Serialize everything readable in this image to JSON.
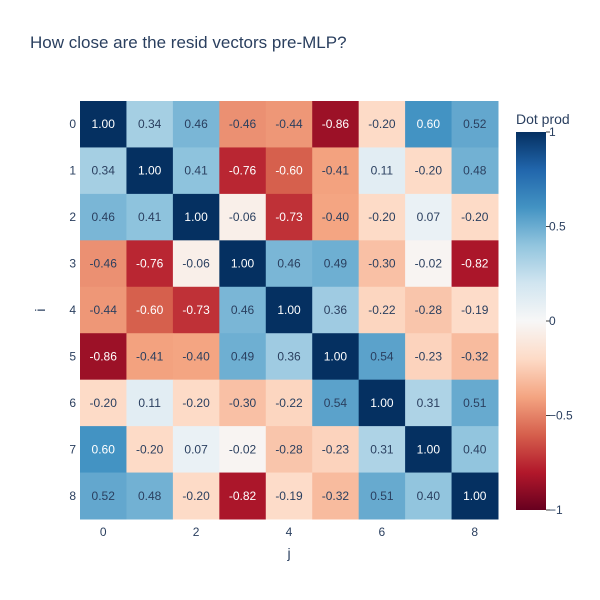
{
  "chart_data": {
    "type": "heatmap",
    "title": "How close are the resid vectors pre-MLP?",
    "xlabel": "j",
    "ylabel": "i",
    "x_tick_labels": [
      "0",
      "2",
      "4",
      "6",
      "8"
    ],
    "y_tick_labels": [
      "0",
      "1",
      "2",
      "3",
      "4",
      "5",
      "6",
      "7",
      "8"
    ],
    "colorbar": {
      "title": "Dot prod",
      "range": [
        -1,
        1
      ],
      "tick_labels": [
        "1",
        "0.5",
        "0",
        "−0.5",
        "−1"
      ],
      "colorscale": [
        "#67001f",
        "#b2182b",
        "#d6604d",
        "#f4a582",
        "#fddbc7",
        "#f7f7f7",
        "#d1e5f0",
        "#92c5de",
        "#4393c3",
        "#2166ac",
        "#053061"
      ]
    },
    "z": [
      [
        1.0,
        0.34,
        0.46,
        -0.46,
        -0.44,
        -0.86,
        -0.2,
        0.6,
        0.52
      ],
      [
        0.34,
        1.0,
        0.41,
        -0.76,
        -0.6,
        -0.41,
        0.11,
        -0.2,
        0.48
      ],
      [
        0.46,
        0.41,
        1.0,
        -0.06,
        -0.73,
        -0.4,
        -0.2,
        0.07,
        -0.2
      ],
      [
        -0.46,
        -0.76,
        -0.06,
        1.0,
        0.46,
        0.49,
        -0.3,
        -0.02,
        -0.82
      ],
      [
        -0.44,
        -0.6,
        -0.73,
        0.46,
        1.0,
        0.36,
        -0.22,
        -0.28,
        -0.19
      ],
      [
        -0.86,
        -0.41,
        -0.4,
        0.49,
        0.36,
        1.0,
        0.54,
        -0.23,
        -0.32
      ],
      [
        -0.2,
        0.11,
        -0.2,
        -0.3,
        -0.22,
        0.54,
        1.0,
        0.31,
        0.51
      ],
      [
        0.6,
        -0.2,
        0.07,
        -0.02,
        -0.28,
        -0.23,
        0.31,
        1.0,
        0.4
      ],
      [
        0.52,
        0.48,
        -0.2,
        -0.82,
        -0.19,
        -0.32,
        0.51,
        0.4,
        1.0
      ]
    ],
    "text_labels": [
      [
        "1.00",
        "0.34",
        "0.46",
        "-0.46",
        "-0.44",
        "-0.86",
        "-0.20",
        "0.60",
        "0.52"
      ],
      [
        "0.34",
        "1.00",
        "0.41",
        "-0.76",
        "-0.60",
        "-0.41",
        "0.11",
        "-0.20",
        "0.48"
      ],
      [
        "0.46",
        "0.41",
        "1.00",
        "-0.06",
        "-0.73",
        "-0.40",
        "-0.20",
        "0.07",
        "-0.20"
      ],
      [
        "-0.46",
        "-0.76",
        "-0.06",
        "1.00",
        "0.46",
        "0.49",
        "-0.30",
        "-0.02",
        "-0.82"
      ],
      [
        "-0.44",
        "-0.60",
        "-0.73",
        "0.46",
        "1.00",
        "0.36",
        "-0.22",
        "-0.28",
        "-0.19"
      ],
      [
        "-0.86",
        "-0.41",
        "-0.40",
        "0.49",
        "0.36",
        "1.00",
        "0.54",
        "-0.23",
        "-0.32"
      ],
      [
        "-0.20",
        "0.11",
        "-0.20",
        "-0.30",
        "-0.22",
        "0.54",
        "1.00",
        "0.31",
        "0.51"
      ],
      [
        "0.60",
        "-0.20",
        "0.07",
        "-0.02",
        "-0.28",
        "-0.23",
        "0.31",
        "1.00",
        "0.40"
      ],
      [
        "0.52",
        "0.48",
        "-0.20",
        "-0.82",
        "-0.19",
        "-0.32",
        "0.51",
        "0.40",
        "1.00"
      ]
    ],
    "colors": {
      "text": "#2a3f5f",
      "light_text": "#ffffff",
      "dark_text": "#2a3f5f"
    }
  }
}
